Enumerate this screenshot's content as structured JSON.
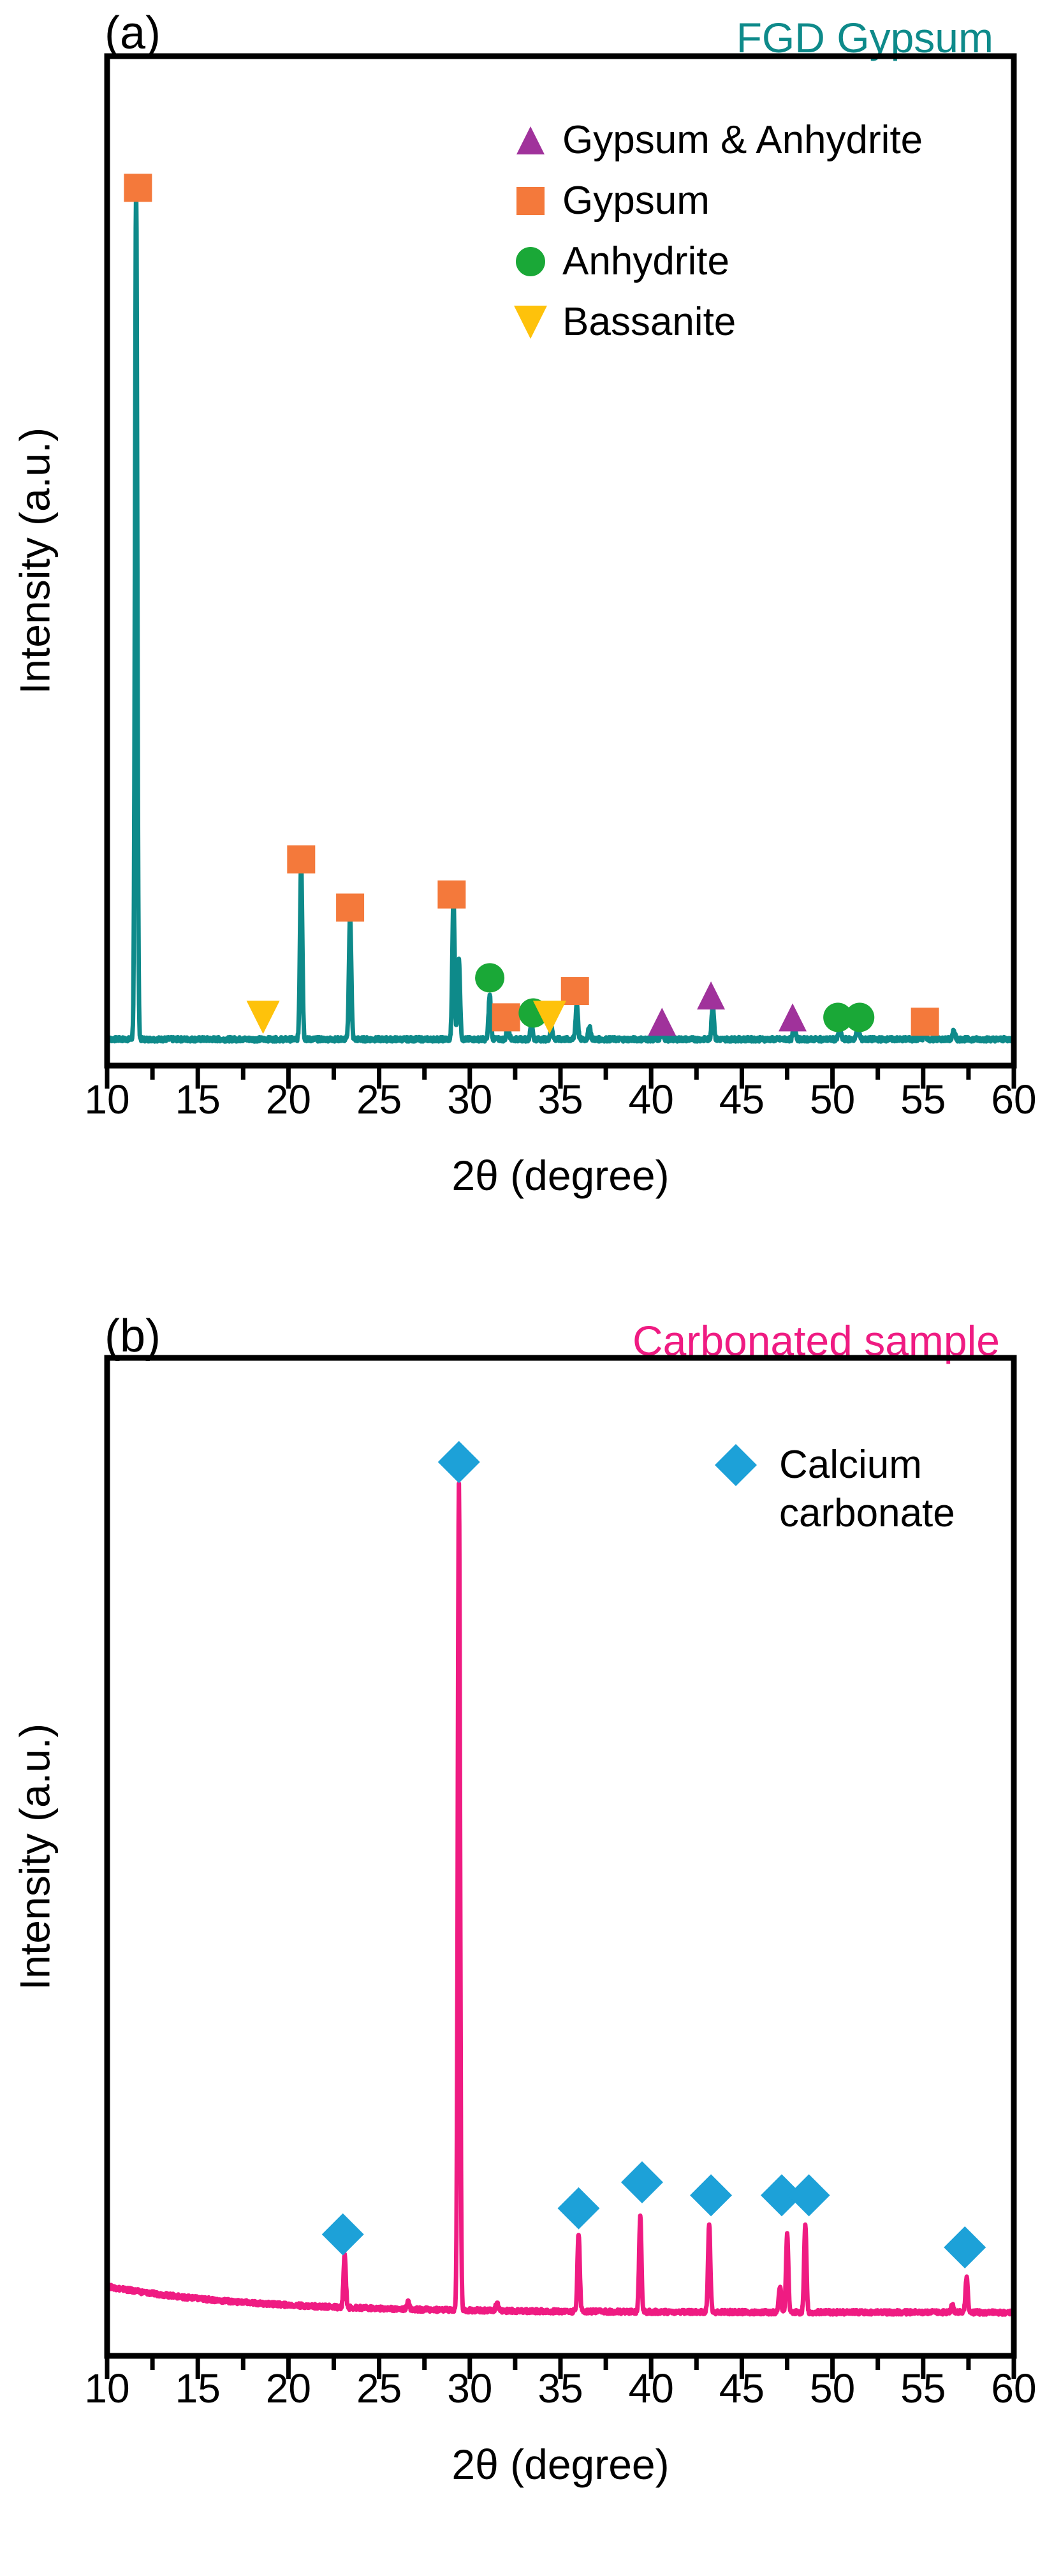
{
  "chart_data": [
    {
      "type": "line",
      "panel_label": "(a)",
      "title": "FGD Gypsum",
      "title_color": "#0e8a8a",
      "line_color": "#0e8a8a",
      "xlabel": "2θ (degree)",
      "ylabel": "Intensity (a.u.)",
      "xlim": [
        10,
        60
      ],
      "ylim": [
        0,
        115
      ],
      "xticks": [
        10,
        15,
        20,
        25,
        30,
        35,
        40,
        45,
        50,
        55,
        60
      ],
      "baseline": 3,
      "peaks": [
        {
          "x": 11.6,
          "h": 97
        },
        {
          "x": 20.7,
          "h": 20
        },
        {
          "x": 23.4,
          "h": 14
        },
        {
          "x": 29.1,
          "h": 16
        },
        {
          "x": 29.4,
          "h": 9
        },
        {
          "x": 31.1,
          "h": 5
        },
        {
          "x": 32.1,
          "h": 2
        },
        {
          "x": 33.4,
          "h": 2
        },
        {
          "x": 34.5,
          "h": 1.5
        },
        {
          "x": 35.9,
          "h": 4
        },
        {
          "x": 36.6,
          "h": 1.5
        },
        {
          "x": 40.6,
          "h": 1.5
        },
        {
          "x": 43.4,
          "h": 4
        },
        {
          "x": 47.9,
          "h": 2
        },
        {
          "x": 50.4,
          "h": 1.5
        },
        {
          "x": 51.4,
          "h": 2
        },
        {
          "x": 55.1,
          "h": 1
        },
        {
          "x": 56.7,
          "h": 1
        }
      ],
      "legend": [
        {
          "label": "Gypsum & Anhydrite",
          "marker": "triangle-up",
          "color": "#a0329b"
        },
        {
          "label": "Gypsum",
          "marker": "square",
          "color": "#f4793b"
        },
        {
          "label": "Anhydrite",
          "marker": "circle",
          "color": "#1aa837"
        },
        {
          "label": "Bassanite",
          "marker": "triangle-down",
          "color": "#fec20b"
        }
      ],
      "markers": [
        {
          "series": "Gypsum",
          "x": 11.7,
          "y": 100
        },
        {
          "series": "Gypsum",
          "x": 20.7,
          "y": 23.5
        },
        {
          "series": "Gypsum",
          "x": 23.4,
          "y": 18
        },
        {
          "series": "Gypsum",
          "x": 29.0,
          "y": 19.5
        },
        {
          "series": "Gypsum",
          "x": 32.0,
          "y": 5.5
        },
        {
          "series": "Gypsum",
          "x": 35.8,
          "y": 8.5
        },
        {
          "series": "Gypsum",
          "x": 55.1,
          "y": 5
        },
        {
          "series": "Anhydrite",
          "x": 31.1,
          "y": 10
        },
        {
          "series": "Anhydrite",
          "x": 33.5,
          "y": 6
        },
        {
          "series": "Anhydrite",
          "x": 50.3,
          "y": 5.5
        },
        {
          "series": "Anhydrite",
          "x": 51.5,
          "y": 5.5
        },
        {
          "series": "Bassanite",
          "x": 18.6,
          "y": 5.5
        },
        {
          "series": "Bassanite",
          "x": 34.4,
          "y": 5.5
        },
        {
          "series": "Gypsum & Anhydrite",
          "x": 40.6,
          "y": 5
        },
        {
          "series": "Gypsum & Anhydrite",
          "x": 43.3,
          "y": 8
        },
        {
          "series": "Gypsum & Anhydrite",
          "x": 47.8,
          "y": 5.5
        }
      ]
    },
    {
      "type": "line",
      "panel_label": "(b)",
      "title": "Carbonated sample",
      "title_color": "#ef1b82",
      "line_color": "#ef1b82",
      "xlabel": "2θ (degree)",
      "ylabel": "Intensity (a.u.)",
      "xlim": [
        10,
        60
      ],
      "ylim": [
        0,
        115
      ],
      "xticks": [
        10,
        15,
        20,
        25,
        30,
        35,
        40,
        45,
        50,
        55,
        60
      ],
      "baseline": 5,
      "peaks": [
        {
          "x": 23.1,
          "h": 6
        },
        {
          "x": 26.6,
          "h": 1
        },
        {
          "x": 29.4,
          "h": 95
        },
        {
          "x": 31.5,
          "h": 1
        },
        {
          "x": 36.0,
          "h": 9
        },
        {
          "x": 39.4,
          "h": 11
        },
        {
          "x": 43.2,
          "h": 10
        },
        {
          "x": 47.1,
          "h": 3
        },
        {
          "x": 47.5,
          "h": 9
        },
        {
          "x": 48.5,
          "h": 10
        },
        {
          "x": 56.6,
          "h": 1
        },
        {
          "x": 57.4,
          "h": 4
        }
      ],
      "legend": [
        {
          "label": "Calcium\ncarbonate",
          "marker": "diamond",
          "color": "#1da1d8"
        }
      ],
      "markers": [
        {
          "series": "Calcium carbonate",
          "x": 23.0,
          "y": 14
        },
        {
          "series": "Calcium carbonate",
          "x": 29.4,
          "y": 103
        },
        {
          "series": "Calcium carbonate",
          "x": 36.0,
          "y": 17
        },
        {
          "series": "Calcium carbonate",
          "x": 39.5,
          "y": 20
        },
        {
          "series": "Calcium carbonate",
          "x": 43.3,
          "y": 18.5
        },
        {
          "series": "Calcium carbonate",
          "x": 47.2,
          "y": 18.5
        },
        {
          "series": "Calcium carbonate",
          "x": 48.7,
          "y": 18.5
        },
        {
          "series": "Calcium carbonate",
          "x": 57.3,
          "y": 12.5
        }
      ]
    }
  ]
}
